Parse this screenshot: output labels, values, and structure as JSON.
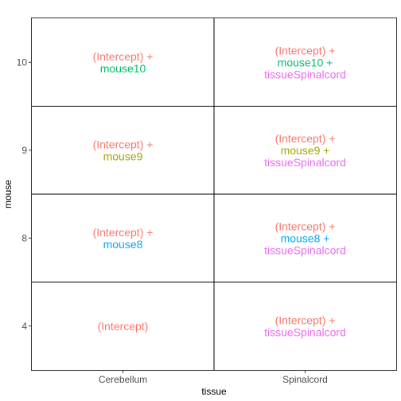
{
  "colors": {
    "intercept": "#F8766D",
    "mouse10": "#00BE67",
    "mouse9": "#A3A500",
    "mouse8": "#00A9FF",
    "tissueSpinalcord": "#E76BF3"
  },
  "chart_data": {
    "type": "table",
    "xlabel": "tissue",
    "ylabel": "mouse",
    "x_categories": [
      "Cerebellum",
      "Spinalcord"
    ],
    "y_categories": [
      "4",
      "8",
      "9",
      "10"
    ],
    "grid": true,
    "legend": "none",
    "cells": [
      {
        "x": "Cerebellum",
        "y": "10",
        "lines": [
          {
            "text": "(Intercept) +",
            "color": "intercept"
          },
          {
            "text": "mouse10",
            "color": "mouse10"
          }
        ]
      },
      {
        "x": "Spinalcord",
        "y": "10",
        "lines": [
          {
            "text": "(Intercept) +",
            "color": "intercept"
          },
          {
            "text": "mouse10 +",
            "color": "mouse10"
          },
          {
            "text": "tissueSpinalcord",
            "color": "tissueSpinalcord"
          }
        ]
      },
      {
        "x": "Cerebellum",
        "y": "9",
        "lines": [
          {
            "text": "(Intercept) +",
            "color": "intercept"
          },
          {
            "text": "mouse9",
            "color": "mouse9"
          }
        ]
      },
      {
        "x": "Spinalcord",
        "y": "9",
        "lines": [
          {
            "text": "(Intercept) +",
            "color": "intercept"
          },
          {
            "text": "mouse9 +",
            "color": "mouse9"
          },
          {
            "text": "tissueSpinalcord",
            "color": "tissueSpinalcord"
          }
        ]
      },
      {
        "x": "Cerebellum",
        "y": "8",
        "lines": [
          {
            "text": "(Intercept) +",
            "color": "intercept"
          },
          {
            "text": "mouse8",
            "color": "mouse8"
          }
        ]
      },
      {
        "x": "Spinalcord",
        "y": "8",
        "lines": [
          {
            "text": "(Intercept) +",
            "color": "intercept"
          },
          {
            "text": "mouse8 +",
            "color": "mouse8"
          },
          {
            "text": "tissueSpinalcord",
            "color": "tissueSpinalcord"
          }
        ]
      },
      {
        "x": "Cerebellum",
        "y": "4",
        "lines": [
          {
            "text": "(Intercept)",
            "color": "intercept"
          }
        ]
      },
      {
        "x": "Spinalcord",
        "y": "4",
        "lines": [
          {
            "text": "(Intercept) +",
            "color": "intercept"
          },
          {
            "text": "tissueSpinalcord",
            "color": "tissueSpinalcord"
          }
        ]
      }
    ]
  }
}
